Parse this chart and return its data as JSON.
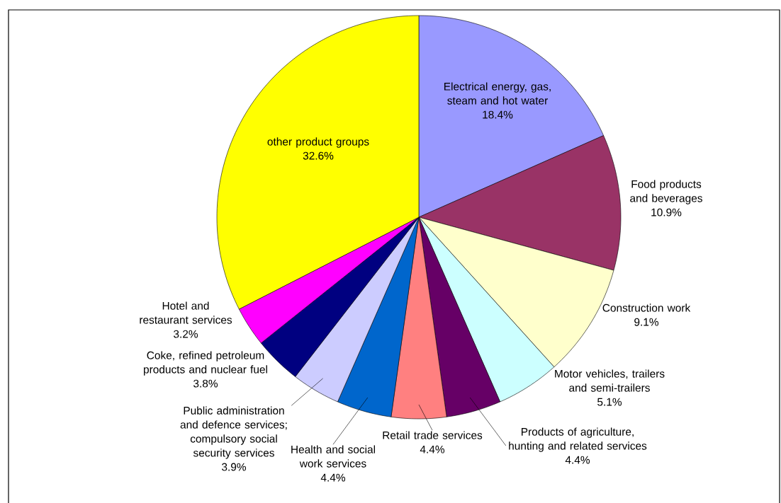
{
  "chart_data": {
    "type": "pie",
    "categories": [
      "Electrical energy, gas, steam and hot water",
      "Food products and beverages",
      "Construction work",
      "Motor vehicles, trailers and semi-trailers",
      "Products of agriculture, hunting and related services",
      "Retail trade services",
      "Health and social work services",
      "Public administration and defence services; compulsory social security services",
      "Coke, refined petroleum products and nuclear fuel",
      "Hotel and restaurant services",
      "other product groups"
    ],
    "values": [
      18.4,
      10.9,
      9.1,
      5.1,
      4.4,
      4.4,
      4.4,
      3.9,
      3.8,
      3.2,
      32.6
    ],
    "value_labels": [
      "18.4%",
      "10.9%",
      "9.1%",
      "5.1%",
      "4.4%",
      "4.4%",
      "4.4%",
      "3.9%",
      "3.8%",
      "3.2%",
      "32.6%"
    ],
    "colors": [
      "#9999ff",
      "#993366",
      "#ffffcc",
      "#ccffff",
      "#660066",
      "#ff8080",
      "#0066cc",
      "#ccccff",
      "#000080",
      "#ff00ff",
      "#ffff00"
    ]
  }
}
